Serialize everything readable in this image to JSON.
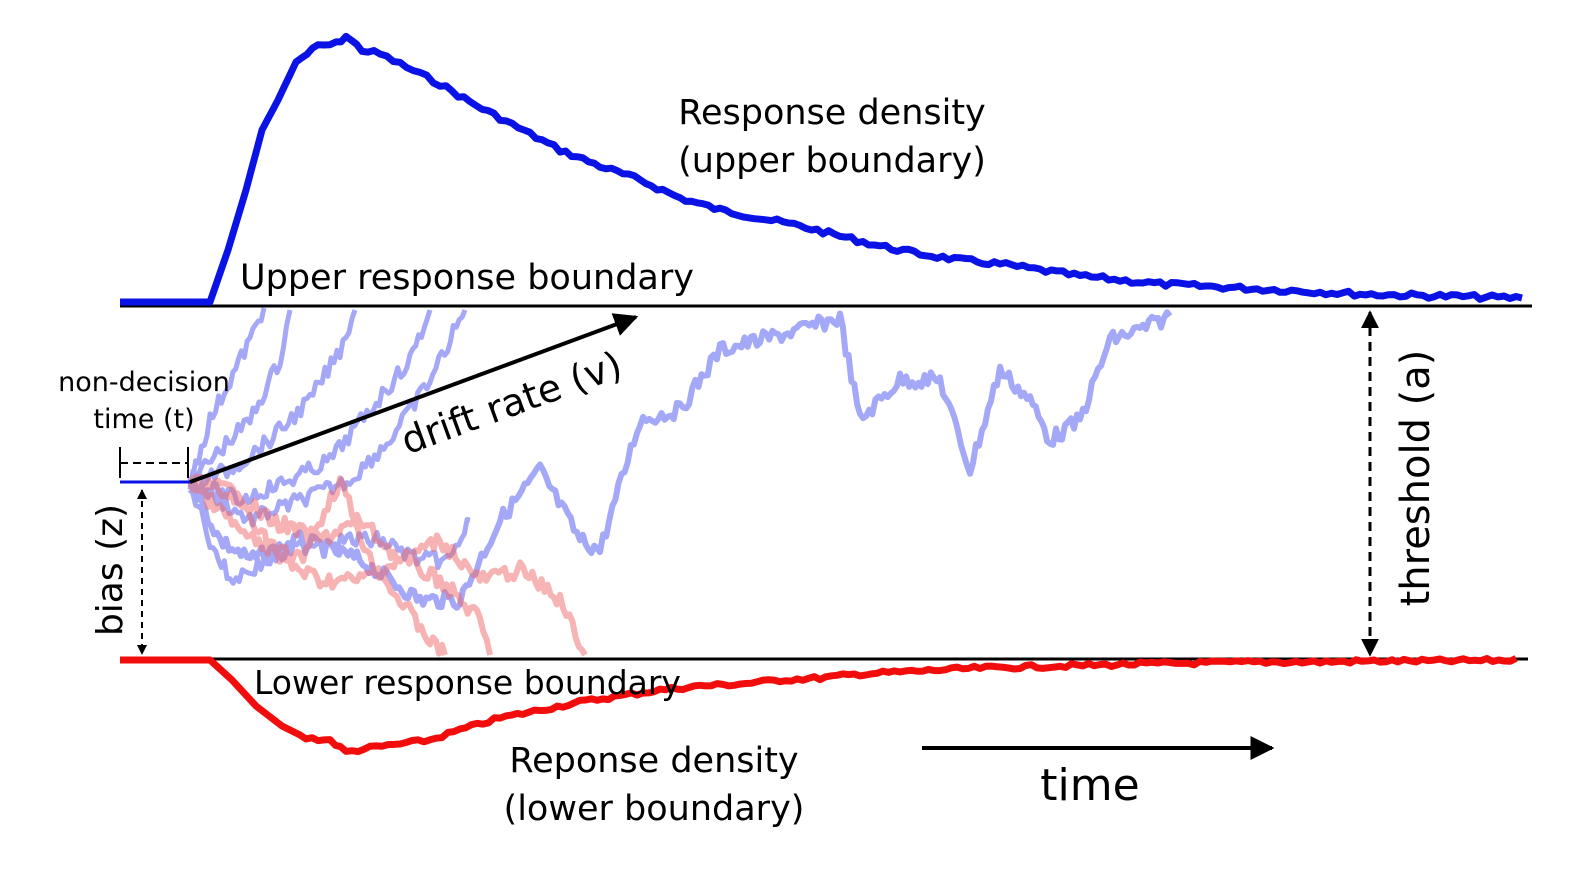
{
  "labels": {
    "upper_density": [
      "Response density",
      "(upper boundary)"
    ],
    "upper_boundary": "Upper response boundary",
    "lower_boundary": "Lower response boundary",
    "lower_density": [
      "Reponse density",
      "(lower boundary)"
    ],
    "non_decision": [
      "non-decision",
      "time (t)"
    ],
    "drift_rate": "drift rate (v)",
    "bias": "bias (z)",
    "threshold": "threshold (a)",
    "time": "time"
  },
  "colors": {
    "upper": "#0a12e6",
    "lower": "#f20d0d",
    "upper_path": "#5a62f0",
    "lower_path": "#f06a6a",
    "ink": "#000000"
  }
}
